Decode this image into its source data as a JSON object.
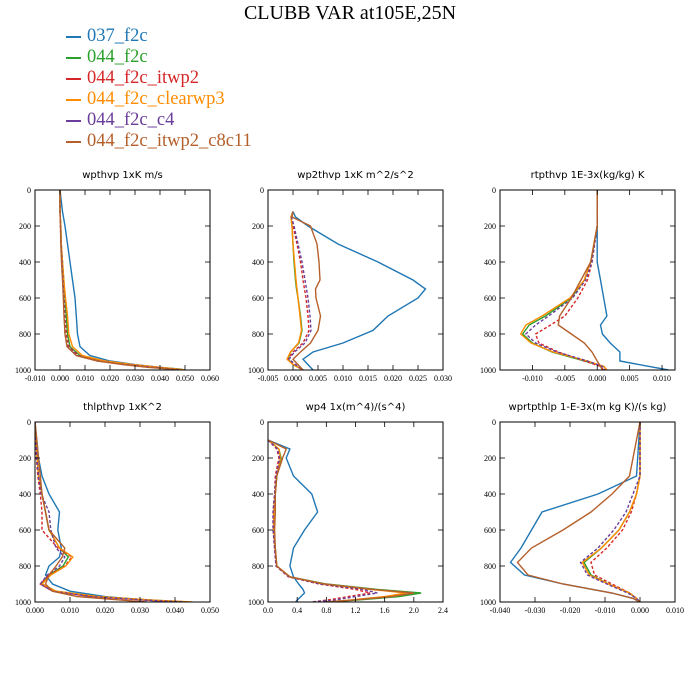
{
  "title": "CLUBB VAR at105E,25N",
  "legend": [
    {
      "name": "037_f2c",
      "color": "#1f77b4",
      "dash": "solid"
    },
    {
      "name": "044_f2c",
      "color": "#2ca02c",
      "dash": "solid"
    },
    {
      "name": "044_f2c_itwp2",
      "color": "#d62728",
      "dash": "dashed"
    },
    {
      "name": "044_f2c_clearwp3",
      "color": "#ff8c00",
      "dash": "solid"
    },
    {
      "name": "044_f2c_c4",
      "color": "#6a3d9a",
      "dash": "dashed"
    },
    {
      "name": "044_f2c_itwp2_c8c11",
      "color": "#b5602b",
      "dash": "solid"
    }
  ],
  "chart_data": [
    {
      "type": "line",
      "title": "wpthvp  1xK m/s",
      "xlim": [
        -0.01,
        0.06
      ],
      "ylim": [
        1000,
        0
      ],
      "xticks": [
        "-0.010",
        "0.000",
        "0.010",
        "0.020",
        "0.030",
        "0.040",
        "0.050",
        "0.060"
      ],
      "xtick_values": [
        -0.01,
        0.0,
        0.01,
        0.02,
        0.03,
        0.04,
        0.05,
        0.06
      ],
      "yticks": [
        "0",
        "200",
        "400",
        "600",
        "800",
        "1000"
      ],
      "ytick_values": [
        0,
        200,
        400,
        600,
        800,
        1000
      ],
      "y": [
        0,
        120,
        200,
        300,
        400,
        500,
        600,
        700,
        800,
        870,
        920,
        950,
        970,
        985,
        995,
        1000
      ],
      "series": [
        {
          "name": "037_f2c",
          "x": [
            0.0,
            0.001,
            0.002,
            0.003,
            0.004,
            0.005,
            0.006,
            0.0065,
            0.007,
            0.008,
            0.012,
            0.02,
            0.03,
            0.04,
            0.048,
            0.05
          ]
        },
        {
          "name": "044_f2c",
          "x": [
            0.0,
            0.0,
            0.0003,
            0.0005,
            0.001,
            0.0015,
            0.002,
            0.0025,
            0.003,
            0.004,
            0.008,
            0.017,
            0.028,
            0.039,
            0.047,
            0.05
          ]
        },
        {
          "name": "044_f2c_itwp2",
          "x": [
            0.0,
            0.0,
            0.0002,
            0.0004,
            0.0008,
            0.0012,
            0.0016,
            0.002,
            0.0025,
            0.0035,
            0.0075,
            0.016,
            0.027,
            0.038,
            0.046,
            0.049
          ]
        },
        {
          "name": "044_f2c_clearwp3",
          "x": [
            0.0,
            0.0,
            0.0003,
            0.0005,
            0.001,
            0.0015,
            0.0022,
            0.003,
            0.0035,
            0.005,
            0.009,
            0.018,
            0.029,
            0.04,
            0.047,
            0.05
          ]
        },
        {
          "name": "044_f2c_c4",
          "x": [
            0.0,
            0.0,
            0.0002,
            0.0004,
            0.0008,
            0.0012,
            0.0015,
            0.0018,
            0.002,
            0.003,
            0.007,
            0.015,
            0.026,
            0.037,
            0.045,
            0.048
          ]
        },
        {
          "name": "044_f2c_itwp2_c8c11",
          "x": [
            0.0,
            0.0,
            0.0002,
            0.0003,
            0.0006,
            0.001,
            0.0013,
            0.0016,
            0.002,
            0.0028,
            0.0065,
            0.015,
            0.025,
            0.035,
            0.044,
            0.047
          ]
        }
      ]
    },
    {
      "type": "line",
      "title": "wp2thvp  1xK m^2/s^2",
      "xlim": [
        -0.005,
        0.03
      ],
      "ylim": [
        1000,
        0
      ],
      "xticks": [
        "-0.005",
        "0.000",
        "0.005",
        "0.010",
        "0.015",
        "0.020",
        "0.025",
        "0.030"
      ],
      "xtick_values": [
        -0.005,
        0.0,
        0.005,
        0.01,
        0.015,
        0.02,
        0.025,
        0.03
      ],
      "yticks": [
        "0",
        "200",
        "400",
        "600",
        "800",
        "1000"
      ],
      "ytick_values": [
        0,
        200,
        400,
        600,
        800,
        1000
      ],
      "y": [
        120,
        150,
        200,
        300,
        400,
        500,
        550,
        600,
        700,
        780,
        850,
        900,
        940,
        970,
        1000
      ],
      "series": [
        {
          "name": "037_f2c",
          "x": [
            0.0,
            0.0005,
            0.003,
            0.009,
            0.017,
            0.024,
            0.0265,
            0.025,
            0.019,
            0.016,
            0.01,
            0.004,
            0.002,
            0.003,
            0.004
          ]
        },
        {
          "name": "044_f2c",
          "x": [
            0.0,
            -0.0004,
            -0.0002,
            0.0,
            0.0002,
            0.0005,
            0.0007,
            0.001,
            0.0015,
            0.0018,
            0.0012,
            -0.0005,
            -0.001,
            0.0,
            0.002
          ]
        },
        {
          "name": "044_f2c_itwp2",
          "x": [
            0.0,
            -0.0003,
            0.0,
            0.0008,
            0.0015,
            0.002,
            0.0023,
            0.0026,
            0.003,
            0.0032,
            0.002,
            0.0,
            -0.001,
            0.0005,
            0.002
          ]
        },
        {
          "name": "044_f2c_clearwp3",
          "x": [
            0.0,
            -0.0004,
            -0.0002,
            0.0,
            0.0003,
            0.0006,
            0.0008,
            0.001,
            0.0014,
            0.0017,
            0.0011,
            -0.0005,
            -0.0012,
            0.0,
            0.002
          ]
        },
        {
          "name": "044_f2c_c4",
          "x": [
            0.0,
            -0.0003,
            0.0002,
            0.001,
            0.0018,
            0.0024,
            0.0027,
            0.003,
            0.0034,
            0.0036,
            0.0024,
            0.0003,
            -0.0008,
            0.0005,
            0.002
          ]
        },
        {
          "name": "044_f2c_itwp2_c8c11",
          "x": [
            0.0,
            -0.0002,
            0.0035,
            0.0048,
            0.0052,
            0.0054,
            0.0045,
            0.0046,
            0.0055,
            0.005,
            0.0035,
            0.0015,
            0.0,
            0.001,
            0.002
          ]
        }
      ]
    },
    {
      "type": "line",
      "title": "rtpthvp  1E-3x(kg/kg) K",
      "xlim": [
        -0.015,
        0.012
      ],
      "ylim": [
        1000,
        0
      ],
      "xticks": [
        "-0.010",
        "-0.005",
        "0.000",
        "0.005",
        "0.010"
      ],
      "xtick_values": [
        -0.01,
        -0.005,
        0.0,
        0.005,
        0.01
      ],
      "yticks": [
        "0",
        "200",
        "400",
        "600",
        "800",
        "1000"
      ],
      "ytick_values": [
        0,
        200,
        400,
        600,
        800,
        1000
      ],
      "y": [
        0,
        200,
        400,
        500,
        600,
        700,
        750,
        800,
        850,
        900,
        950,
        980,
        1000
      ],
      "series": [
        {
          "name": "037_f2c",
          "x": [
            0.0,
            0.0,
            0.0,
            0.0005,
            0.001,
            0.0015,
            0.0005,
            0.0008,
            0.002,
            0.0035,
            0.0035,
            0.008,
            0.011
          ]
        },
        {
          "name": "044_f2c",
          "x": [
            0.0,
            0.0,
            -0.001,
            -0.002,
            -0.004,
            -0.008,
            -0.0105,
            -0.0115,
            -0.01,
            -0.007,
            -0.002,
            0.001,
            0.0015
          ]
        },
        {
          "name": "044_f2c_itwp2",
          "x": [
            0.0,
            0.0,
            -0.0008,
            -0.0015,
            -0.003,
            -0.005,
            -0.0072,
            -0.0095,
            -0.009,
            -0.006,
            -0.002,
            0.0005,
            0.001
          ]
        },
        {
          "name": "044_f2c_clearwp3",
          "x": [
            0.0,
            0.0,
            -0.001,
            -0.002,
            -0.0042,
            -0.0085,
            -0.011,
            -0.0118,
            -0.0102,
            -0.0068,
            -0.0015,
            0.001,
            0.0015
          ]
        },
        {
          "name": "044_f2c_c4",
          "x": [
            0.0,
            0.0,
            -0.0008,
            -0.0018,
            -0.0038,
            -0.0075,
            -0.0095,
            -0.011,
            -0.0095,
            -0.0062,
            -0.0015,
            0.0008,
            0.0012
          ]
        },
        {
          "name": "044_f2c_itwp2_c8c11",
          "x": [
            0.0,
            0.0,
            -0.001,
            -0.0025,
            -0.004,
            -0.0058,
            -0.006,
            -0.004,
            -0.002,
            -0.0008,
            0.0,
            0.0005,
            0.0008
          ]
        }
      ]
    },
    {
      "type": "line",
      "title": "thlpthvp  1xK^2",
      "xlim": [
        0.0,
        0.05
      ],
      "ylim": [
        1000,
        0
      ],
      "xticks": [
        "0.000",
        "0.010",
        "0.020",
        "0.030",
        "0.040",
        "0.050"
      ],
      "xtick_values": [
        0.0,
        0.01,
        0.02,
        0.03,
        0.04,
        0.05
      ],
      "yticks": [
        "0",
        "200",
        "400",
        "600",
        "800",
        "1000"
      ],
      "ytick_values": [
        0,
        200,
        400,
        600,
        800,
        1000
      ],
      "y": [
        0,
        100,
        200,
        300,
        400,
        500,
        600,
        700,
        750,
        800,
        850,
        900,
        940,
        970,
        990,
        1000
      ],
      "series": [
        {
          "name": "037_f2c",
          "x": [
            0.0,
            0.0005,
            0.001,
            0.002,
            0.004,
            0.007,
            0.0065,
            0.0075,
            0.007,
            0.004,
            0.003,
            0.005,
            0.01,
            0.02,
            0.032,
            0.04
          ]
        },
        {
          "name": "044_f2c",
          "x": [
            0.0,
            0.0003,
            0.0006,
            0.001,
            0.002,
            0.003,
            0.004,
            0.007,
            0.0095,
            0.008,
            0.004,
            0.002,
            0.006,
            0.018,
            0.034,
            0.044
          ]
        },
        {
          "name": "044_f2c_itwp2",
          "x": [
            0.0,
            0.0002,
            0.0004,
            0.0008,
            0.0015,
            0.002,
            0.002,
            0.0065,
            0.0105,
            0.0085,
            0.004,
            0.0015,
            0.005,
            0.016,
            0.032,
            0.043
          ]
        },
        {
          "name": "044_f2c_clearwp3",
          "x": [
            0.0,
            0.0003,
            0.0006,
            0.001,
            0.002,
            0.003,
            0.004,
            0.007,
            0.0108,
            0.0088,
            0.0045,
            0.002,
            0.006,
            0.018,
            0.034,
            0.045
          ]
        },
        {
          "name": "044_f2c_c4",
          "x": [
            0.0,
            0.0003,
            0.0005,
            0.001,
            0.0018,
            0.004,
            0.0045,
            0.006,
            0.0085,
            0.007,
            0.0035,
            0.0015,
            0.005,
            0.016,
            0.032,
            0.043
          ]
        },
        {
          "name": "044_f2c_itwp2_c8c11",
          "x": [
            0.0,
            0.0005,
            0.001,
            0.0015,
            0.002,
            0.003,
            0.004,
            0.0085,
            0.0078,
            0.006,
            0.004,
            0.003,
            0.005,
            0.012,
            0.025,
            0.032
          ]
        }
      ]
    },
    {
      "type": "line",
      "title": "wp4  1x(m^4)/(s^4)",
      "xlim": [
        0.0,
        2.4
      ],
      "ylim": [
        1000,
        0
      ],
      "xticks": [
        "0.0",
        "0.4",
        "0.8",
        "1.2",
        "1.6",
        "2.0",
        "2.4"
      ],
      "xtick_values": [
        0.0,
        0.4,
        0.8,
        1.2,
        1.6,
        2.0,
        2.4
      ],
      "yticks": [
        "0",
        "200",
        "400",
        "600",
        "800",
        "1000"
      ],
      "ytick_values": [
        0,
        200,
        400,
        600,
        800,
        1000
      ],
      "y": [
        100,
        150,
        200,
        300,
        400,
        500,
        600,
        700,
        800,
        860,
        900,
        930,
        950,
        970,
        990,
        1000
      ],
      "series": [
        {
          "name": "037_f2c",
          "x": [
            0.0,
            0.3,
            0.25,
            0.35,
            0.6,
            0.68,
            0.5,
            0.35,
            0.3,
            0.35,
            0.42,
            0.48,
            0.5,
            0.45,
            0.4,
            0.38
          ]
        },
        {
          "name": "044_f2c",
          "x": [
            0.0,
            0.15,
            0.18,
            0.12,
            0.1,
            0.08,
            0.08,
            0.1,
            0.12,
            0.3,
            0.8,
            1.5,
            2.1,
            1.8,
            1.2,
            0.8
          ]
        },
        {
          "name": "044_f2c_itwp2",
          "x": [
            0.0,
            0.12,
            0.15,
            0.1,
            0.09,
            0.07,
            0.07,
            0.09,
            0.11,
            0.28,
            0.7,
            1.2,
            1.4,
            1.1,
            0.8,
            0.6
          ]
        },
        {
          "name": "044_f2c_clearwp3",
          "x": [
            0.0,
            0.15,
            0.17,
            0.12,
            0.1,
            0.08,
            0.08,
            0.1,
            0.12,
            0.3,
            0.75,
            1.4,
            1.9,
            1.6,
            1.1,
            0.8
          ]
        },
        {
          "name": "044_f2c_c4",
          "x": [
            0.0,
            0.13,
            0.16,
            0.11,
            0.09,
            0.07,
            0.07,
            0.09,
            0.11,
            0.29,
            0.72,
            1.3,
            1.5,
            1.2,
            0.9,
            0.6
          ]
        },
        {
          "name": "044_f2c_itwp2_c8c11",
          "x": [
            0.0,
            0.25,
            0.2,
            0.12,
            0.1,
            0.1,
            0.09,
            0.1,
            0.12,
            0.3,
            0.78,
            1.45,
            2.0,
            1.7,
            1.15,
            0.8
          ]
        }
      ]
    },
    {
      "type": "line",
      "title": "wprtpthlp  1-E-3x(m kg K)/(s kg)",
      "xlim": [
        -0.04,
        0.01
      ],
      "ylim": [
        1000,
        0
      ],
      "xticks": [
        "-0.040",
        "-0.030",
        "-0.020",
        "-0.010",
        "0.000",
        "0.010"
      ],
      "xtick_values": [
        -0.04,
        -0.03,
        -0.02,
        -0.01,
        0.0,
        0.01
      ],
      "yticks": [
        "0",
        "200",
        "400",
        "600",
        "800",
        "1000"
      ],
      "ytick_values": [
        0,
        200,
        400,
        600,
        800,
        1000
      ],
      "y": [
        0,
        300,
        400,
        500,
        600,
        700,
        780,
        850,
        900,
        950,
        980,
        1000
      ],
      "series": [
        {
          "name": "037_f2c",
          "x": [
            0.0,
            -0.001,
            -0.012,
            -0.028,
            -0.031,
            -0.034,
            -0.037,
            -0.033,
            -0.022,
            -0.008,
            -0.002,
            0.0
          ]
        },
        {
          "name": "044_f2c",
          "x": [
            0.0,
            0.0,
            -0.001,
            -0.003,
            -0.006,
            -0.011,
            -0.016,
            -0.014,
            -0.009,
            -0.003,
            -0.001,
            0.0
          ]
        },
        {
          "name": "044_f2c_itwp2",
          "x": [
            0.0,
            0.0,
            -0.001,
            -0.0025,
            -0.005,
            -0.0095,
            -0.014,
            -0.013,
            -0.008,
            -0.003,
            -0.001,
            0.0
          ]
        },
        {
          "name": "044_f2c_clearwp3",
          "x": [
            0.0,
            0.0,
            -0.001,
            -0.003,
            -0.006,
            -0.011,
            -0.0165,
            -0.0145,
            -0.009,
            -0.003,
            -0.001,
            0.0
          ]
        },
        {
          "name": "044_f2c_c4",
          "x": [
            0.0,
            0.0,
            -0.002,
            -0.004,
            -0.0075,
            -0.012,
            -0.017,
            -0.015,
            -0.0095,
            -0.0035,
            -0.001,
            0.0
          ]
        },
        {
          "name": "044_f2c_itwp2_c8c11",
          "x": [
            0.0,
            -0.003,
            -0.008,
            -0.014,
            -0.022,
            -0.031,
            -0.035,
            -0.032,
            -0.022,
            -0.008,
            -0.002,
            0.0
          ]
        }
      ]
    }
  ]
}
